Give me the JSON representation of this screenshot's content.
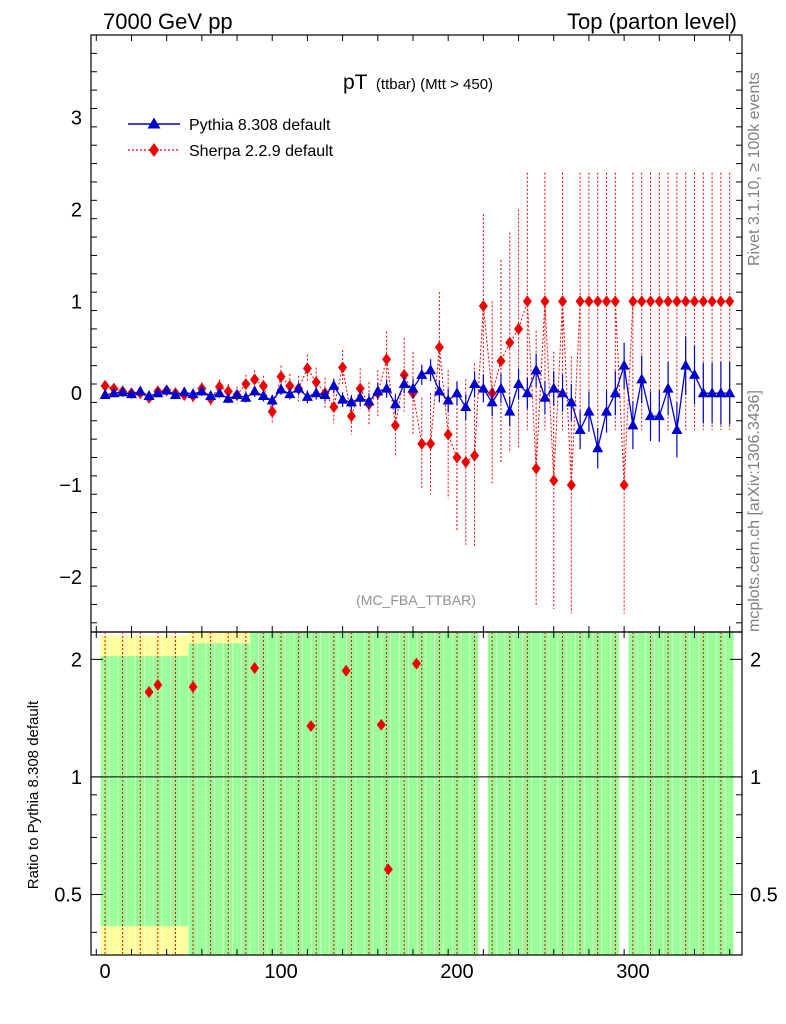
{
  "header": {
    "left": "7000 GeV pp",
    "right": "Top (parton level)"
  },
  "side_labels": {
    "rivet": "Rivet 3.1.10, ≥ 100k events",
    "mcplots": "mcplots.cern.ch [arXiv:1306.3436]"
  },
  "colors": {
    "pythia": "#0000cc",
    "sherpa": "#ee0000",
    "band_inner": "#99ff99",
    "band_outer": "#ffff99"
  },
  "chart_data": {
    "type": "line",
    "title_main": "pT",
    "title_small": "(ttbar) (Mtt > 450)",
    "analysis_label": "(MC_FBA_TTBAR)",
    "ratio_ylabel": "Ratio to Pythia 8.308 default",
    "xlim": [
      -8,
      362
    ],
    "ylim": [
      -2.6,
      3.9
    ],
    "ratio_ylim": [
      0.35,
      2.35
    ],
    "x_ticks": [
      0,
      100,
      200,
      300
    ],
    "y_ticks": [
      -2,
      -1,
      0,
      1,
      2,
      3
    ],
    "ratio_ticks": [
      0.5,
      1,
      2
    ],
    "x": [
      0,
      5,
      10,
      15,
      20,
      25,
      30,
      35,
      40,
      45,
      50,
      55,
      60,
      65,
      70,
      75,
      80,
      85,
      90,
      95,
      100,
      105,
      110,
      115,
      120,
      125,
      130,
      135,
      140,
      145,
      150,
      155,
      160,
      165,
      170,
      175,
      180,
      185,
      190,
      195,
      200,
      205,
      210,
      215,
      220,
      225,
      230,
      235,
      240,
      245,
      250,
      255,
      260,
      265,
      270,
      275,
      280,
      285,
      290,
      295,
      300,
      305,
      310,
      315,
      320,
      325,
      330,
      335,
      340,
      345,
      350,
      355
    ],
    "series": [
      {
        "name": "Pythia 8.308 default",
        "values": [
          -0.02,
          0.0,
          0.01,
          -0.01,
          0.02,
          -0.03,
          0.0,
          0.03,
          -0.02,
          0.01,
          -0.01,
          0.02,
          -0.03,
          0.0,
          -0.06,
          -0.02,
          -0.05,
          0.02,
          -0.03,
          -0.08,
          0.04,
          -0.01,
          0.05,
          -0.04,
          0.0,
          -0.02,
          0.08,
          -0.07,
          -0.1,
          -0.05,
          -0.09,
          0.02,
          0.05,
          -0.12,
          0.1,
          0.05,
          0.2,
          0.25,
          0.02,
          -0.08,
          0.0,
          -0.15,
          0.1,
          0.05,
          -0.1,
          0.05,
          -0.2,
          0.1,
          0.0,
          0.25,
          -0.05,
          0.05,
          0.0,
          -0.1,
          -0.4,
          -0.2,
          -0.6,
          -0.2,
          0.0,
          0.3,
          -0.35,
          0.15,
          -0.25,
          -0.25,
          0.05,
          -0.4,
          0.3,
          0.2,
          0.0,
          0.0,
          0.0,
          0.0
        ],
        "errors": [
          0.04,
          0.04,
          0.04,
          0.04,
          0.04,
          0.04,
          0.04,
          0.04,
          0.04,
          0.04,
          0.05,
          0.05,
          0.05,
          0.05,
          0.05,
          0.05,
          0.05,
          0.06,
          0.06,
          0.06,
          0.06,
          0.06,
          0.07,
          0.07,
          0.07,
          0.07,
          0.08,
          0.08,
          0.08,
          0.09,
          0.09,
          0.09,
          0.1,
          0.1,
          0.1,
          0.11,
          0.11,
          0.12,
          0.12,
          0.13,
          0.13,
          0.14,
          0.14,
          0.15,
          0.15,
          0.16,
          0.16,
          0.17,
          0.17,
          0.18,
          0.18,
          0.19,
          0.2,
          0.2,
          0.21,
          0.22,
          0.22,
          0.23,
          0.24,
          0.25,
          0.26,
          0.26,
          0.27,
          0.28,
          0.29,
          0.3,
          0.32,
          0.32,
          0.33,
          0.33,
          0.34,
          0.34
        ]
      },
      {
        "name": "Sherpa 2.2.9 default",
        "values": [
          0.08,
          0.05,
          0.02,
          0.0,
          0.0,
          -0.05,
          0.02,
          0.03,
          0.0,
          -0.02,
          -0.03,
          0.05,
          -0.06,
          0.07,
          0.02,
          -0.02,
          0.1,
          0.15,
          0.08,
          -0.2,
          0.18,
          0.08,
          0.05,
          0.27,
          0.12,
          0.0,
          -0.15,
          0.28,
          -0.25,
          0.05,
          -0.12,
          0.0,
          0.37,
          -0.35,
          0.2,
          0.0,
          -0.55,
          -0.55,
          0.5,
          -0.45,
          -0.7,
          -0.75,
          -0.68,
          0.95,
          0.0,
          0.35,
          0.55,
          0.7,
          1.0,
          -0.82,
          1.0,
          -0.95,
          1.0,
          -1.0,
          1.0,
          1.0,
          1.0,
          1.0,
          1.0,
          -1.0,
          1.0,
          1.0,
          1.0,
          1.0,
          1.0,
          1.0,
          1.0,
          1.0,
          1.0,
          1.0,
          1.0,
          1.0
        ],
        "errors": [
          0.05,
          0.05,
          0.05,
          0.05,
          0.05,
          0.06,
          0.06,
          0.06,
          0.06,
          0.06,
          0.07,
          0.07,
          0.08,
          0.08,
          0.08,
          0.09,
          0.1,
          0.1,
          0.11,
          0.12,
          0.12,
          0.13,
          0.14,
          0.15,
          0.16,
          0.17,
          0.18,
          0.19,
          0.2,
          0.22,
          0.24,
          0.25,
          0.3,
          0.35,
          0.4,
          0.45,
          0.5,
          0.55,
          0.6,
          0.7,
          0.8,
          0.9,
          1.0,
          1.0,
          1.0,
          1.1,
          1.2,
          1.3,
          1.4,
          1.5,
          1.4,
          1.4,
          1.4,
          1.4,
          1.4,
          1.4,
          1.4,
          1.4,
          1.4,
          1.4,
          1.4,
          1.4,
          1.4,
          1.4,
          1.4,
          1.4,
          1.4,
          1.4,
          1.4,
          1.4,
          1.4,
          1.4
        ]
      }
    ],
    "ratio_points": {
      "x": [
        25,
        30,
        50,
        85,
        117,
        137,
        157,
        161,
        177
      ],
      "values": [
        1.65,
        1.72,
        1.7,
        1.9,
        1.35,
        1.87,
        1.36,
        0.58,
        1.95
      ]
    }
  }
}
